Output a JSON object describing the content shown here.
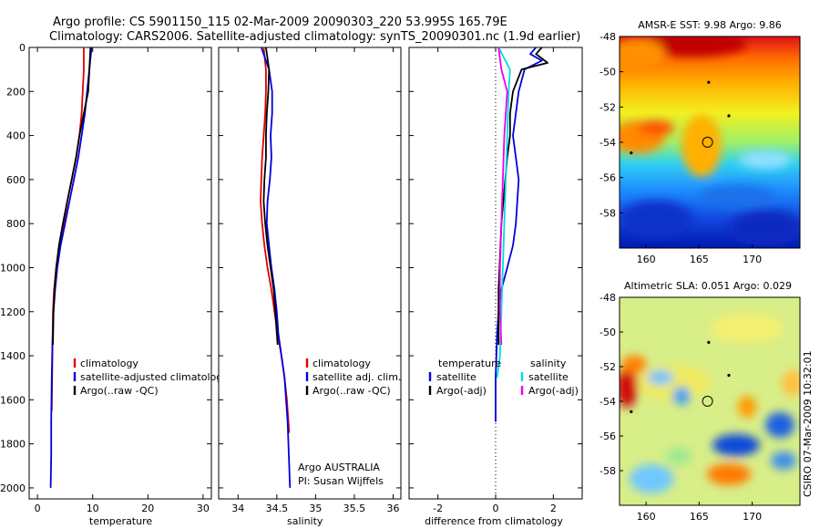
{
  "header": {
    "line1": "Argo profile: CS 5901150_115 02-Mar-2009 20090303_220 53.995S 165.79E",
    "line2": "Climatology: CARS2006. Satellite-adjusted climatology: synTS_20090301.nc (1.9d earlier)"
  },
  "colors": {
    "climatology": "#e00000",
    "satellite": "#0000dd",
    "argo": "#000000",
    "cyan": "#00dddd",
    "magenta": "#ee00ee"
  },
  "chart_data": [
    {
      "type": "line",
      "name": "temperature-profile",
      "xlabel": "temperature",
      "ylabel": "",
      "xlim": [
        -1.5,
        31.5
      ],
      "ylim": [
        0,
        2050
      ],
      "y_inverted": true,
      "xticks": [
        0,
        10,
        20,
        30
      ],
      "yticks": [
        0,
        200,
        400,
        600,
        800,
        1000,
        1200,
        1400,
        1600,
        1800,
        2000
      ],
      "legend": [
        "climatology",
        "satellite-adjusted climatology",
        "Argo(..raw -QC)"
      ],
      "legend_position": "lower-right",
      "series": [
        {
          "name": "climatology",
          "color": "#e00000",
          "x": [
            8.4,
            8.4,
            8.2,
            8.0,
            7.6,
            7.0,
            6.2,
            5.4,
            4.8,
            4.0,
            3.4,
            3.0,
            2.8,
            2.7,
            2.6
          ],
          "y": [
            0,
            100,
            200,
            300,
            400,
            500,
            600,
            700,
            800,
            900,
            1000,
            1100,
            1200,
            1400,
            1650
          ]
        },
        {
          "name": "satellite-adjusted climatology",
          "color": "#0000dd",
          "x": [
            9.8,
            9.4,
            9.0,
            8.6,
            8.0,
            7.4,
            6.6,
            5.8,
            5.0,
            4.2,
            3.6,
            3.2,
            2.9,
            2.7,
            2.6,
            2.5,
            2.5,
            2.4
          ],
          "y": [
            0,
            100,
            200,
            300,
            400,
            500,
            600,
            700,
            800,
            900,
            1000,
            1100,
            1200,
            1350,
            1500,
            1700,
            1850,
            2000
          ]
        },
        {
          "name": "Argo(..raw -QC)",
          "color": "#000000",
          "x": [
            9.6,
            9.4,
            9.2,
            8.4,
            7.6,
            7.0,
            6.2,
            5.4,
            4.6,
            3.9,
            3.4,
            3.1,
            2.9,
            2.8
          ],
          "y": [
            0,
            100,
            200,
            300,
            400,
            500,
            600,
            700,
            800,
            900,
            1000,
            1100,
            1200,
            1350
          ]
        }
      ]
    },
    {
      "type": "line",
      "name": "salinity-profile",
      "xlabel": "salinity",
      "ylabel": "",
      "xlim": [
        33.75,
        36.1
      ],
      "ylim": [
        0,
        2050
      ],
      "y_inverted": true,
      "xticks": [
        34,
        34.5,
        35,
        35.5,
        36
      ],
      "yticks": [],
      "legend": [
        "climatology",
        "satellite adj. clim.",
        "Argo(..raw -QC)"
      ],
      "legend_position": "lower-right",
      "annotations": [
        "Argo AUSTRALIA",
        "PI: Susan Wijffels"
      ],
      "series": [
        {
          "name": "climatology",
          "color": "#e00000",
          "x": [
            34.33,
            34.36,
            34.36,
            34.35,
            34.33,
            34.31,
            34.3,
            34.29,
            34.31,
            34.34,
            34.38,
            34.43,
            34.47,
            34.51,
            34.56,
            34.6,
            34.63,
            34.66
          ],
          "y": [
            0,
            100,
            200,
            300,
            400,
            500,
            600,
            700,
            800,
            900,
            1000,
            1100,
            1200,
            1300,
            1400,
            1500,
            1600,
            1750
          ]
        },
        {
          "name": "satellite adj. clim.",
          "color": "#0000dd",
          "x": [
            34.3,
            34.4,
            34.44,
            34.44,
            34.42,
            34.43,
            34.41,
            34.38,
            34.37,
            34.4,
            34.43,
            34.47,
            34.5,
            34.52,
            34.56,
            34.6,
            34.64,
            34.67
          ],
          "y": [
            0,
            100,
            200,
            300,
            400,
            500,
            600,
            700,
            800,
            900,
            1000,
            1100,
            1200,
            1300,
            1400,
            1500,
            1700,
            2000
          ]
        },
        {
          "name": "Argo(..raw -QC)",
          "color": "#000000",
          "x": [
            34.36,
            34.4,
            34.39,
            34.37,
            34.36,
            34.36,
            34.34,
            34.33,
            34.35,
            34.38,
            34.42,
            34.46,
            34.49,
            34.51
          ],
          "y": [
            0,
            100,
            200,
            300,
            400,
            500,
            600,
            700,
            800,
            900,
            1000,
            1100,
            1250,
            1350
          ]
        }
      ]
    },
    {
      "type": "line",
      "name": "difference-from-climatology",
      "xlabel": "difference from climatology",
      "ylabel": "",
      "xlim": [
        -3.0,
        3.0
      ],
      "ylim": [
        0,
        2050
      ],
      "y_inverted": true,
      "xticks": [
        -2,
        0,
        2
      ],
      "yticks": [],
      "zero_line": "dotted",
      "legend": [
        "temperature",
        "satellite",
        "Argo(-adj)",
        "salinity",
        "satellite",
        "Argo(-adj)"
      ],
      "legend_position": "lower-center",
      "series": [
        {
          "name": "temperature satellite",
          "color": "#0000dd",
          "x": [
            1.4,
            1.2,
            1.6,
            1.0,
            0.8,
            0.7,
            0.6,
            0.7,
            0.8,
            0.7,
            0.6,
            0.4,
            0.2,
            0.1,
            0.05,
            0.0,
            0.0
          ],
          "y": [
            0,
            30,
            60,
            100,
            200,
            300,
            400,
            500,
            600,
            800,
            900,
            1000,
            1100,
            1200,
            1300,
            1500,
            1700
          ]
        },
        {
          "name": "temperature Argo(-adj)",
          "color": "#000000",
          "x": [
            1.6,
            1.4,
            1.8,
            0.9,
            0.6,
            0.5,
            0.5,
            0.4,
            0.2,
            0.1,
            0.1
          ],
          "y": [
            0,
            30,
            70,
            100,
            200,
            300,
            400,
            500,
            800,
            1100,
            1350
          ]
        },
        {
          "name": "salinity satellite",
          "color": "#00dddd",
          "x": [
            0.1,
            0.3,
            0.5,
            0.45,
            0.4,
            0.35,
            0.3,
            0.25,
            0.2,
            0.15,
            0.05
          ],
          "y": [
            0,
            50,
            100,
            200,
            400,
            600,
            800,
            1000,
            1200,
            1400,
            1500
          ]
        },
        {
          "name": "salinity Argo(-adj)",
          "color": "#ee00ee",
          "x": [
            0.1,
            0.2,
            0.4,
            0.35,
            0.3,
            0.25,
            0.2,
            0.15,
            0.15,
            0.2
          ],
          "y": [
            0,
            100,
            200,
            300,
            400,
            600,
            800,
            1000,
            1200,
            1350
          ]
        }
      ]
    },
    {
      "type": "heatmap",
      "name": "sst-map",
      "title": "AMSR-E SST: 9.98 Argo: 9.86",
      "xlim": [
        157.5,
        174.5
      ],
      "ylim": [
        -60,
        -48
      ],
      "xticks": [
        160,
        165,
        170
      ],
      "yticks": [
        -48,
        -50,
        -52,
        -54,
        -56,
        -58
      ],
      "marker": {
        "lon": 165.79,
        "lat": -53.995
      },
      "dots": [
        [
          165.9,
          -50.6
        ],
        [
          167.8,
          -52.5
        ],
        [
          158.6,
          -54.6
        ]
      ]
    },
    {
      "type": "heatmap",
      "name": "sla-map",
      "title": "Altimetric SLA: 0.051 Argo: 0.029",
      "xlim": [
        157.5,
        174.5
      ],
      "ylim": [
        -60,
        -48
      ],
      "xticks": [
        160,
        165,
        170
      ],
      "yticks": [
        -48,
        -50,
        -52,
        -54,
        -56,
        -58
      ],
      "marker": {
        "lon": 165.79,
        "lat": -53.995
      },
      "dots": [
        [
          165.9,
          -50.6
        ],
        [
          167.8,
          -52.5
        ],
        [
          158.6,
          -54.6
        ]
      ]
    }
  ],
  "side_stamp": "CSIRO 07-Mar-2009 10:32:01"
}
